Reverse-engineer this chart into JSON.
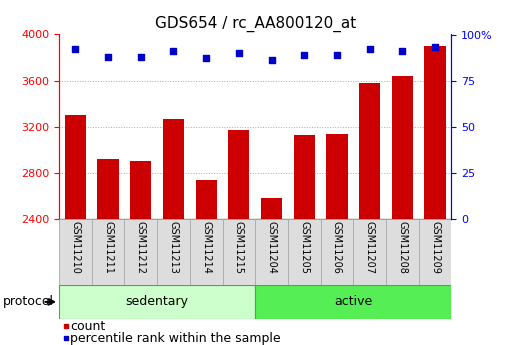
{
  "title": "GDS654 / rc_AA800120_at",
  "samples": [
    "GSM11210",
    "GSM11211",
    "GSM11212",
    "GSM11213",
    "GSM11214",
    "GSM11215",
    "GSM11204",
    "GSM11205",
    "GSM11206",
    "GSM11207",
    "GSM11208",
    "GSM11209"
  ],
  "counts": [
    3300,
    2920,
    2900,
    3270,
    2740,
    3170,
    2580,
    3130,
    3140,
    3580,
    3640,
    3900
  ],
  "percentile_ranks": [
    92,
    88,
    88,
    91,
    87,
    90,
    86,
    89,
    89,
    92,
    91,
    93
  ],
  "groups": [
    {
      "name": "sedentary",
      "indices": [
        0,
        1,
        2,
        3,
        4,
        5
      ],
      "color": "#ccffcc",
      "border": "#44aa44"
    },
    {
      "name": "active",
      "indices": [
        6,
        7,
        8,
        9,
        10,
        11
      ],
      "color": "#55ee55",
      "border": "#44aa44"
    }
  ],
  "bar_color": "#cc0000",
  "dot_color": "#0000cc",
  "ylim_left": [
    2400,
    4000
  ],
  "ylim_right": [
    0,
    100
  ],
  "yticks_left": [
    2400,
    2800,
    3200,
    3600,
    4000
  ],
  "yticks_right": [
    0,
    25,
    50,
    75,
    100
  ],
  "ytick_labels_right": [
    "0",
    "25",
    "50",
    "75",
    "100%"
  ],
  "grid_color": "#aaaaaa",
  "bg_color": "#ffffff",
  "sample_box_color": "#dddddd",
  "sample_box_border": "#aaaaaa",
  "title_fontsize": 11,
  "tick_fontsize": 8,
  "sample_fontsize": 7,
  "group_fontsize": 9,
  "legend_fontsize": 9,
  "protocol_label": "protocol",
  "legend_count_label": "count",
  "legend_percentile_label": "percentile rank within the sample"
}
